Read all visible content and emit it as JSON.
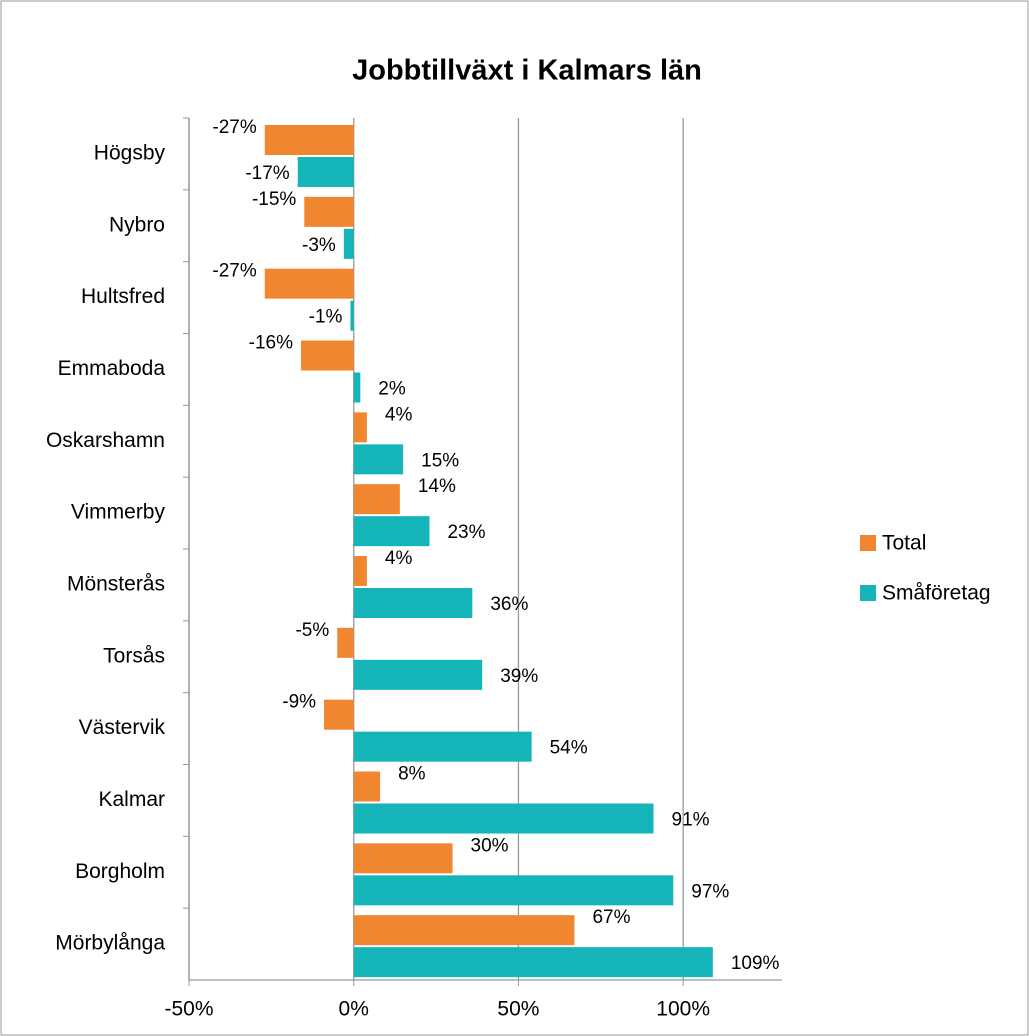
{
  "chart_data": {
    "type": "hbar",
    "title": "Jobbtillväxt i Kalmars län",
    "categories": [
      "Högsby",
      "Nybro",
      "Hultsfred",
      "Emmaboda",
      "Oskarshamn",
      "Vimmerby",
      "Mönsterås",
      "Torsås",
      "Västervik",
      "Kalmar",
      "Borgholm",
      "Mörbylånga"
    ],
    "series": [
      {
        "name": "Total",
        "color": "#f0862f",
        "values": [
          -27,
          -15,
          -27,
          -16,
          4,
          14,
          4,
          -5,
          -9,
          8,
          30,
          67
        ],
        "value_labels": [
          "-27%",
          "-15%",
          "-27%",
          "-16%",
          "4%",
          "14%",
          "4%",
          "-5%",
          "-9%",
          "8%",
          "30%",
          "67%"
        ]
      },
      {
        "name": "Småföretag",
        "color": "#14b4b8",
        "values": [
          -17,
          -3,
          -1,
          2,
          15,
          23,
          36,
          39,
          54,
          91,
          97,
          109
        ],
        "value_labels": [
          "-17%",
          "-3%",
          "-1%",
          "2%",
          "15%",
          "23%",
          "36%",
          "39%",
          "54%",
          "91%",
          "97%",
          "109%"
        ]
      }
    ],
    "xlim": [
      -50,
      130
    ],
    "xticks": [
      {
        "value": -50,
        "label": "-50%"
      },
      {
        "value": 0,
        "label": "0%"
      },
      {
        "value": 50,
        "label": "50%"
      },
      {
        "value": 100,
        "label": "100%"
      }
    ],
    "grid": true,
    "legend": "right"
  }
}
